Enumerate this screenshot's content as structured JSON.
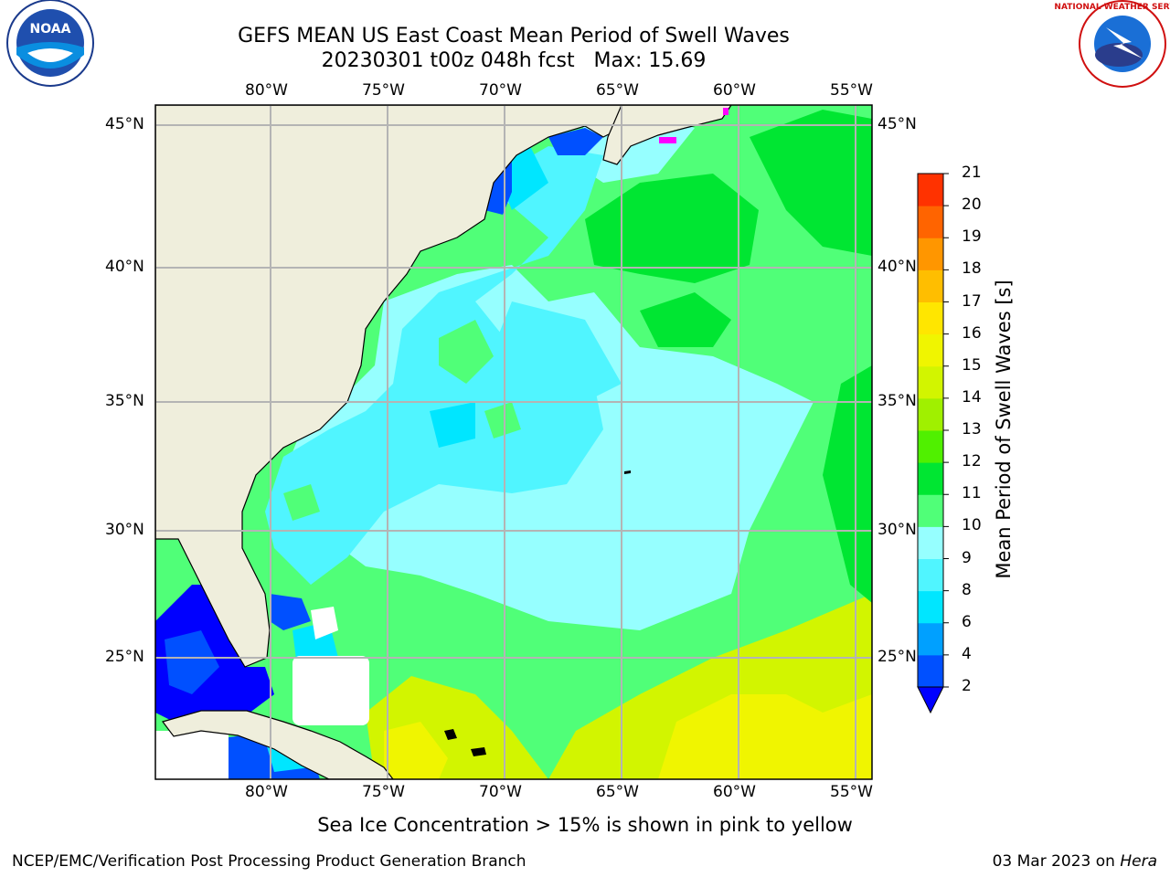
{
  "title": {
    "line1": "GEFS MEAN US East Coast Mean Period of Swell Waves",
    "line2": "20230301 t00z 048h fcst   Max: 15.69"
  },
  "logos": {
    "left": {
      "name": "noaa-logo",
      "text": "NOAA"
    },
    "right": {
      "name": "nws-logo",
      "text": "NATIONAL WEATHER SERVICE"
    }
  },
  "axes": {
    "lon_labels": [
      "80°W",
      "75°W",
      "70°W",
      "65°W",
      "60°W",
      "55°W"
    ],
    "lat_labels": [
      "45°N",
      "40°N",
      "35°N",
      "30°N",
      "25°N"
    ]
  },
  "colorbar": {
    "label": "Mean Period of Swell Waves [s]",
    "ticks": [
      "2",
      "4",
      "6",
      "8",
      "9",
      "10",
      "11",
      "12",
      "13",
      "14",
      "15",
      "16",
      "17",
      "18",
      "19",
      "20",
      "21"
    ],
    "colors": [
      "#0050ff",
      "#00a0ff",
      "#00e6ff",
      "#50f5ff",
      "#96ffff",
      "#50ff78",
      "#00e632",
      "#50f000",
      "#a0f000",
      "#d2f500",
      "#f0f500",
      "#ffe600",
      "#ffbe00",
      "#ff9600",
      "#ff6400",
      "#ff3200",
      "#ff0000"
    ],
    "extend_color": "#0000ff"
  },
  "note": "Sea Ice Concentration > 15% is shown in pink to yellow",
  "footer": {
    "left": "NCEP/EMC/Verification Post Processing Product Generation Branch",
    "right_date": "03 Mar 2023 on ",
    "right_host": "Hera"
  },
  "colors": {
    "land": "#efeedc",
    "grid": "#b4b4b4"
  }
}
